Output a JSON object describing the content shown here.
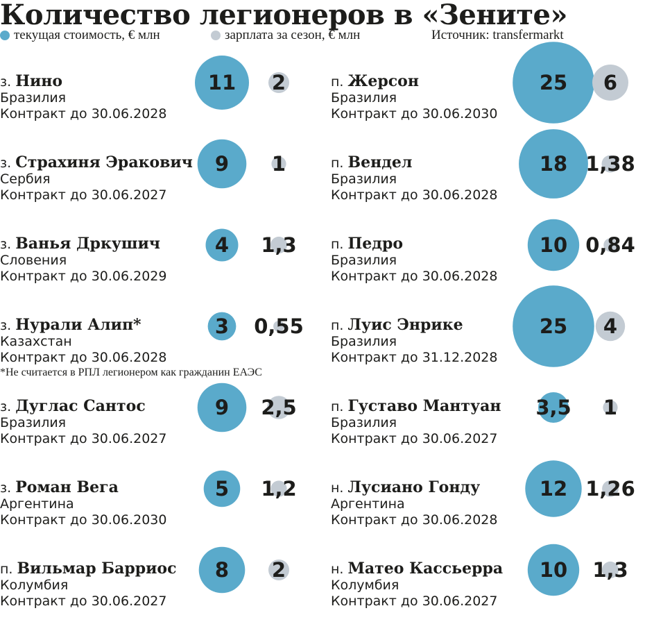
{
  "title": "Количество легионеров в «Зените»",
  "legend": {
    "value_label": "текущая стоимость, € млн",
    "salary_label": "зарплата за сезон, € млн",
    "source": "Источник: transfermarkt"
  },
  "footnote": "*Не считается в РПЛ легионером как гражданин ЕАЭС",
  "colors": {
    "value": "#5aaacb",
    "salary": "#c3cbd3",
    "text": "#1d1d1b"
  },
  "chart_data": {
    "type": "bubble",
    "title": "Количество легионеров в «Зените»",
    "series": [
      {
        "name": "текущая стоимость, € млн",
        "key": "value",
        "color": "#5aaacb"
      },
      {
        "name": "зарплата за сезон, € млн",
        "key": "salary",
        "color": "#c3cbd3"
      }
    ],
    "players": [
      {
        "pos": "з.",
        "name": "Нино",
        "country": "Бразилия",
        "contract": "Контракт до 30.06.2028",
        "value": 11,
        "value_label": "11",
        "salary": 2,
        "salary_label": "2"
      },
      {
        "pos": "з.",
        "name": "Страхиня Эракович",
        "country": "Сербия",
        "contract": "Контракт до 30.06.2027",
        "value": 9,
        "value_label": "9",
        "salary": 1,
        "salary_label": "1"
      },
      {
        "pos": "з.",
        "name": "Ванья Дркушич",
        "country": "Словения",
        "contract": "Контракт до 30.06.2029",
        "value": 4,
        "value_label": "4",
        "salary": 1.3,
        "salary_label": "1,3"
      },
      {
        "pos": "з.",
        "name": "Нурали Алип*",
        "country": "Казахстан",
        "contract": "Контракт до 30.06.2028",
        "value": 3,
        "value_label": "3",
        "salary": 0.55,
        "salary_label": "0,55"
      },
      {
        "pos": "з.",
        "name": "Дуглас Сантос",
        "country": "Бразилия",
        "contract": "Контракт до 30.06.2027",
        "value": 9,
        "value_label": "9",
        "salary": 2.5,
        "salary_label": "2,5"
      },
      {
        "pos": "з.",
        "name": "Роман Вега",
        "country": "Аргентина",
        "contract": "Контракт до 30.06.2030",
        "value": 5,
        "value_label": "5",
        "salary": 1.2,
        "salary_label": "1,2"
      },
      {
        "pos": "п.",
        "name": "Вильмар Барриос",
        "country": "Колумбия",
        "contract": "Контракт до 30.06.2027",
        "value": 8,
        "value_label": "8",
        "salary": 2,
        "salary_label": "2"
      },
      {
        "pos": "п.",
        "name": "Жерсон",
        "country": "Бразилия",
        "contract": "Контракт до 30.06.2030",
        "value": 25,
        "value_label": "25",
        "salary": 6,
        "salary_label": "6"
      },
      {
        "pos": "п.",
        "name": "Вендел",
        "country": "Бразилия",
        "contract": "Контракт до 30.06.2028",
        "value": 18,
        "value_label": "18",
        "salary": 1.38,
        "salary_label": "1,38"
      },
      {
        "pos": "п.",
        "name": "Педро",
        "country": "Бразилия",
        "contract": "Контракт до 30.06.2028",
        "value": 10,
        "value_label": "10",
        "salary": 0.84,
        "salary_label": "0,84"
      },
      {
        "pos": "п.",
        "name": "Луис Энрике",
        "country": "Бразилия",
        "contract": "Контракт до 31.12.2028",
        "value": 25,
        "value_label": "25",
        "salary": 4,
        "salary_label": "4"
      },
      {
        "pos": "п.",
        "name": "Густаво Мантуан",
        "country": "Бразилия",
        "contract": "Контракт до 30.06.2027",
        "value": 3.5,
        "value_label": "3,5",
        "salary": 1,
        "salary_label": "1"
      },
      {
        "pos": "н.",
        "name": "Лусиано Гонду",
        "country": "Аргентина",
        "contract": "Контракт до 30.06.2028",
        "value": 12,
        "value_label": "12",
        "salary": 1.26,
        "salary_label": "1,26"
      },
      {
        "pos": "н.",
        "name": "Матео Кассьерра",
        "country": "Колумбия",
        "contract": "Контракт до 30.06.2027",
        "value": 10,
        "value_label": "10",
        "salary": 1.3,
        "salary_label": "1,3"
      }
    ]
  }
}
